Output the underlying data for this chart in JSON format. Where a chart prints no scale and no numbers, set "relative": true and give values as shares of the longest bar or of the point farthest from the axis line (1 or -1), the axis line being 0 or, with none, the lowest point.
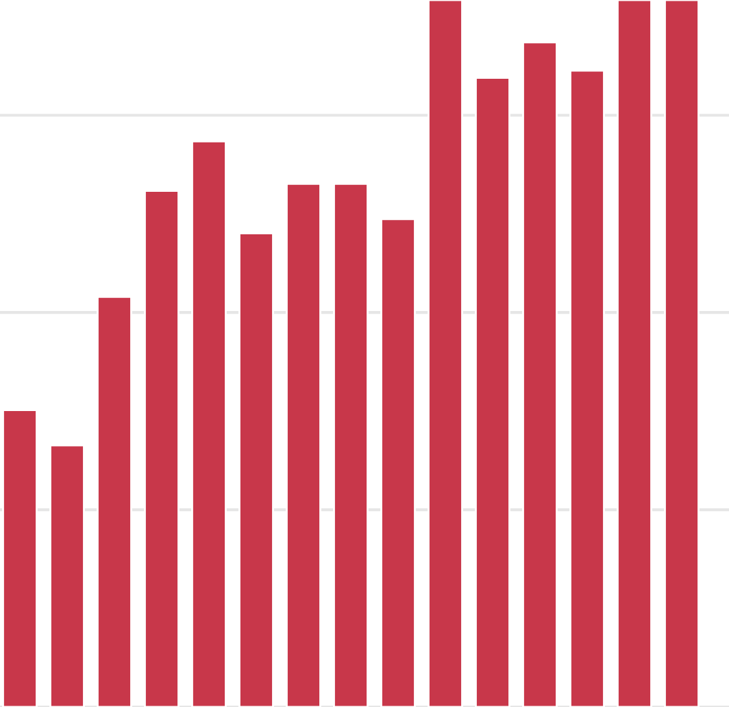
{
  "chart_data": {
    "type": "bar",
    "relative": true,
    "grid": "y",
    "categories": [
      null,
      null,
      null,
      null,
      null,
      null,
      null,
      null,
      null,
      null,
      null,
      null,
      null,
      null,
      null
    ],
    "values": [
      0.42,
      0.37,
      0.58,
      0.73,
      0.8,
      0.67,
      0.74,
      0.74,
      0.69,
      1,
      0.89,
      0.94,
      0.9,
      1,
      1
    ],
    "color": "#c8374a"
  }
}
